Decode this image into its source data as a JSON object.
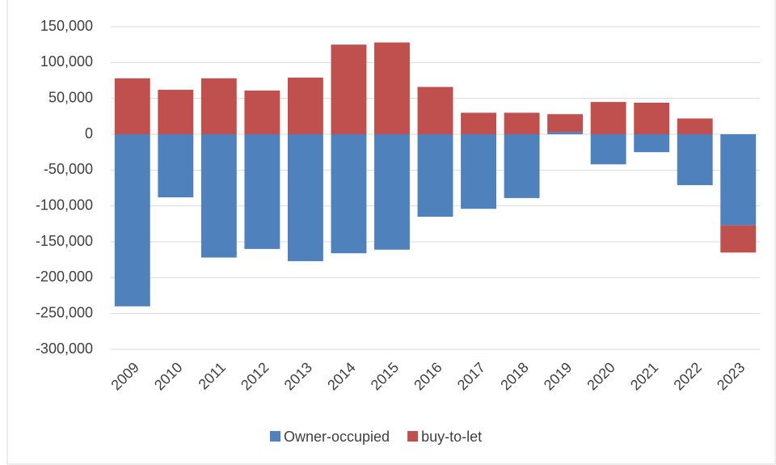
{
  "chart_data": {
    "type": "stacked-bar",
    "categories": [
      "2009",
      "2010",
      "2011",
      "2012",
      "2013",
      "2014",
      "2015",
      "2016",
      "2017",
      "2018",
      "2019",
      "2020",
      "2021",
      "2022",
      "2023"
    ],
    "series": [
      {
        "name": "Owner-occupied",
        "color": "#4f81bd",
        "values": [
          -240000,
          -88000,
          -172000,
          -160000,
          -177000,
          -166000,
          -161000,
          -115000,
          -104000,
          -89000,
          3000,
          -42000,
          -25000,
          -71000,
          -127000
        ]
      },
      {
        "name": "buy-to-let",
        "color": "#c0504d",
        "values": [
          78000,
          62000,
          78000,
          61000,
          79000,
          125000,
          128000,
          66000,
          30000,
          30000,
          25000,
          45000,
          44000,
          22000,
          -38000
        ]
      }
    ],
    "ylim": [
      -300000,
      150000
    ],
    "yticks": [
      {
        "value": -300000,
        "label": "-300,000"
      },
      {
        "value": -250000,
        "label": "-250,000"
      },
      {
        "value": -200000,
        "label": "-200,000"
      },
      {
        "value": -150000,
        "label": "-150,000"
      },
      {
        "value": -100000,
        "label": "-100,000"
      },
      {
        "value": -50000,
        "label": "-50,000"
      },
      0,
      {
        "value": 50000,
        "label": "50,000"
      },
      {
        "value": 100000,
        "label": "100,000"
      },
      {
        "value": 150000,
        "label": "150,000"
      }
    ],
    "grid": true,
    "legend": "bottom"
  }
}
